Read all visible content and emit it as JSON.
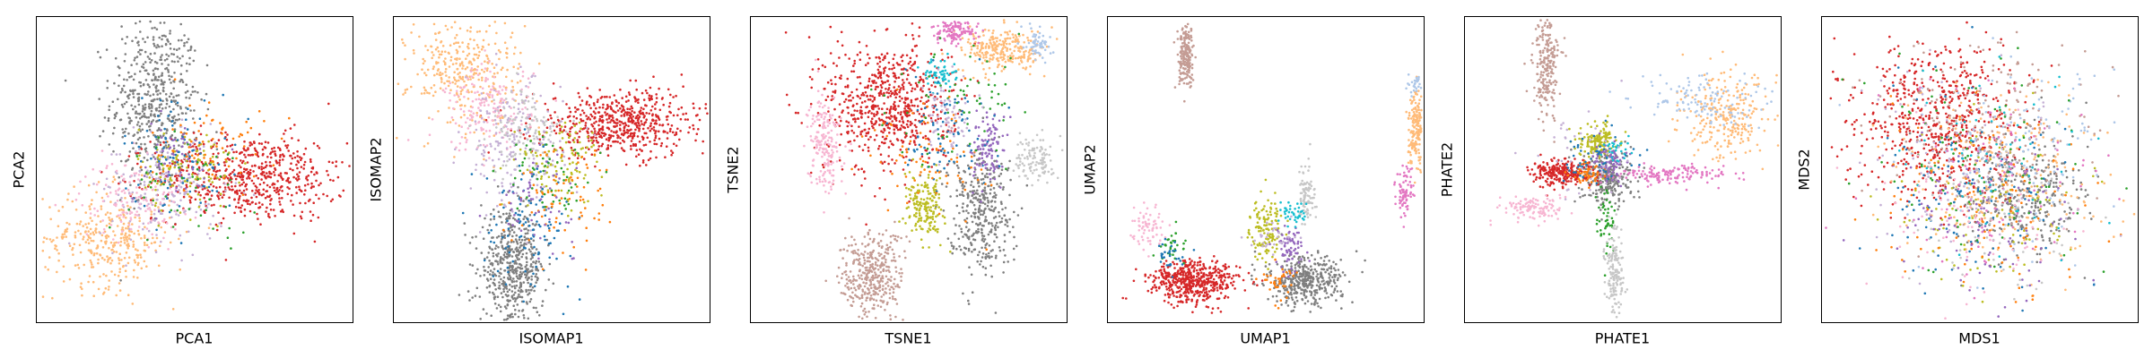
{
  "figure": {
    "panel_count": 6
  },
  "palette": {
    "red": "#d62728",
    "gray": "#7f7f7f",
    "orange": "#ff7f0e",
    "light_orange": "#ffbb78",
    "blue": "#1f77b4",
    "light_blue": "#aec7e8",
    "olive": "#bcbd22",
    "pink": "#e377c2",
    "light_pink": "#f7b6d2",
    "brown": "#c49c94",
    "purple": "#9467bd",
    "lavender": "#c5b0d5",
    "green": "#2ca02c",
    "cyan": "#17becf",
    "silver": "#c7c7c7"
  },
  "chart_data": [
    {
      "type": "scatter",
      "title": "",
      "xlabel": "PCA1",
      "ylabel": "PCA2",
      "xticks": [],
      "yticks": [],
      "grid": false,
      "legend": "none",
      "xlim": [
        -10,
        10
      ],
      "ylim": [
        -10,
        10
      ],
      "clusters": [
        {
          "color": "#7f7f7f",
          "center": [
            -2.5,
            4.5
          ],
          "spread": [
            1.4,
            2.8
          ],
          "count": 520
        },
        {
          "color": "#d62728",
          "center": [
            3.5,
            -0.5
          ],
          "spread": [
            3.0,
            1.4
          ],
          "count": 620
        },
        {
          "color": "#ffbb78",
          "center": [
            -5.5,
            -4.5
          ],
          "spread": [
            2.0,
            1.6
          ],
          "count": 340
        },
        {
          "color": "#c5b0d5",
          "center": [
            -2.0,
            -1.5
          ],
          "spread": [
            2.0,
            1.8
          ],
          "count": 180
        },
        {
          "color": "#f7b6d2",
          "center": [
            -4.0,
            -2.0
          ],
          "spread": [
            1.6,
            1.3
          ],
          "count": 130
        },
        {
          "color": "#bcbd22",
          "center": [
            -0.5,
            0.0
          ],
          "spread": [
            1.5,
            1.4
          ],
          "count": 110
        },
        {
          "color": "#ff7f0e",
          "center": [
            0.8,
            1.5
          ],
          "spread": [
            1.8,
            1.6
          ],
          "count": 80
        },
        {
          "color": "#1f77b4",
          "center": [
            -1.0,
            1.0
          ],
          "spread": [
            1.8,
            2.0
          ],
          "count": 90
        },
        {
          "color": "#9467bd",
          "center": [
            -1.5,
            0.5
          ],
          "spread": [
            1.4,
            1.4
          ],
          "count": 60
        },
        {
          "color": "#2ca02c",
          "center": [
            0.0,
            -1.0
          ],
          "spread": [
            2.0,
            1.6
          ],
          "count": 50
        }
      ]
    },
    {
      "type": "scatter",
      "title": "",
      "xlabel": "ISOMAP1",
      "ylabel": "ISOMAP2",
      "xticks": [],
      "yticks": [],
      "grid": false,
      "legend": "none",
      "xlim": [
        -10,
        10
      ],
      "ylim": [
        -10,
        10
      ],
      "clusters": [
        {
          "color": "#d62728",
          "center": [
            4.5,
            3.0
          ],
          "spread": [
            2.8,
            1.1
          ],
          "count": 600
        },
        {
          "color": "#7f7f7f",
          "center": [
            -2.5,
            -6.5
          ],
          "spread": [
            1.0,
            1.8
          ],
          "count": 520
        },
        {
          "color": "#ffbb78",
          "center": [
            -5.5,
            6.5
          ],
          "spread": [
            1.8,
            1.8
          ],
          "count": 340
        },
        {
          "color": "#f7b6d2",
          "center": [
            -4.0,
            4.0
          ],
          "spread": [
            1.4,
            1.4
          ],
          "count": 180
        },
        {
          "color": "#c5b0d5",
          "center": [
            -2.5,
            1.5
          ],
          "spread": [
            1.6,
            2.2
          ],
          "count": 180
        },
        {
          "color": "#c7c7c7",
          "center": [
            -1.5,
            2.5
          ],
          "spread": [
            1.2,
            1.4
          ],
          "count": 120
        },
        {
          "color": "#bcbd22",
          "center": [
            0.5,
            0.5
          ],
          "spread": [
            1.4,
            1.4
          ],
          "count": 110
        },
        {
          "color": "#1f77b4",
          "center": [
            -1.5,
            -3.5
          ],
          "spread": [
            1.4,
            2.0
          ],
          "count": 110
        },
        {
          "color": "#ff7f0e",
          "center": [
            1.0,
            -1.5
          ],
          "spread": [
            1.8,
            1.8
          ],
          "count": 80
        },
        {
          "color": "#9467bd",
          "center": [
            -1.0,
            -2.0
          ],
          "spread": [
            1.2,
            1.4
          ],
          "count": 60
        },
        {
          "color": "#2ca02c",
          "center": [
            0.0,
            -0.5
          ],
          "spread": [
            1.4,
            1.4
          ],
          "count": 50
        }
      ]
    },
    {
      "type": "scatter",
      "title": "",
      "xlabel": "TSNE1",
      "ylabel": "TSNE2",
      "xticks": [],
      "yticks": [],
      "grid": false,
      "legend": "none",
      "xlim": [
        -10,
        10
      ],
      "ylim": [
        -10,
        10
      ],
      "clusters": [
        {
          "color": "#d62728",
          "center": [
            -1.3,
            4.2
          ],
          "spread": [
            2.0,
            2.2
          ],
          "count": 680
        },
        {
          "color": "#7f7f7f",
          "center": [
            4.5,
            -2.5
          ],
          "spread": [
            1.0,
            2.0
          ],
          "count": 380
        },
        {
          "color": "#c49c94",
          "center": [
            -2.3,
            -7.0
          ],
          "spread": [
            1.0,
            1.5
          ],
          "count": 380
        },
        {
          "color": "#ffbb78",
          "center": [
            6.0,
            7.8
          ],
          "spread": [
            1.3,
            0.7
          ],
          "count": 260
        },
        {
          "color": "#f7b6d2",
          "center": [
            -5.3,
            1.8
          ],
          "spread": [
            0.5,
            1.6
          ],
          "count": 200
        },
        {
          "color": "#bcbd22",
          "center": [
            1.0,
            -2.5
          ],
          "spread": [
            0.6,
            1.0
          ],
          "count": 180
        },
        {
          "color": "#e377c2",
          "center": [
            3.0,
            9.0
          ],
          "spread": [
            0.7,
            0.4
          ],
          "count": 120
        },
        {
          "color": "#9467bd",
          "center": [
            5.0,
            1.3
          ],
          "spread": [
            0.5,
            1.1
          ],
          "count": 110
        },
        {
          "color": "#c7c7c7",
          "center": [
            8.0,
            0.8
          ],
          "spread": [
            0.6,
            0.8
          ],
          "count": 110
        },
        {
          "color": "#aec7e8",
          "center": [
            8.2,
            8.2
          ],
          "spread": [
            0.4,
            0.6
          ],
          "count": 60
        },
        {
          "color": "#17becf",
          "center": [
            2.0,
            6.3
          ],
          "spread": [
            0.5,
            0.4
          ],
          "count": 60
        },
        {
          "color": "#1f77b4",
          "center": [
            2.3,
            2.5
          ],
          "spread": [
            1.6,
            1.8
          ],
          "count": 90
        },
        {
          "color": "#ff7f0e",
          "center": [
            1.5,
            1.0
          ],
          "spread": [
            1.8,
            2.0
          ],
          "count": 80
        },
        {
          "color": "#2ca02c",
          "center": [
            3.5,
            4.5
          ],
          "spread": [
            2.2,
            2.0
          ],
          "count": 70
        },
        {
          "color": "#c5b0d5",
          "center": [
            2.5,
            3.5
          ],
          "spread": [
            1.0,
            1.4
          ],
          "count": 70
        }
      ]
    },
    {
      "type": "scatter",
      "title": "",
      "xlabel": "UMAP1",
      "ylabel": "UMAP2",
      "xticks": [],
      "yticks": [],
      "grid": false,
      "legend": "none",
      "xlim": [
        -10,
        10
      ],
      "ylim": [
        -10,
        10
      ],
      "clusters": [
        {
          "color": "#d62728",
          "center": [
            -4.5,
            -7.3
          ],
          "spread": [
            1.4,
            0.7
          ],
          "count": 520
        },
        {
          "color": "#7f7f7f",
          "center": [
            2.4,
            -7.3
          ],
          "spread": [
            1.2,
            0.8
          ],
          "count": 420
        },
        {
          "color": "#c49c94",
          "center": [
            -5.0,
            7.3
          ],
          "spread": [
            0.25,
            1.0
          ],
          "count": 200
        },
        {
          "color": "#ffbb78",
          "center": [
            9.5,
            2.8
          ],
          "spread": [
            0.25,
            1.2
          ],
          "count": 180
        },
        {
          "color": "#bcbd22",
          "center": [
            0.0,
            -3.8
          ],
          "spread": [
            0.5,
            1.0
          ],
          "count": 130
        },
        {
          "color": "#c7c7c7",
          "center": [
            2.6,
            -1.6
          ],
          "spread": [
            0.25,
            1.0
          ],
          "count": 90
        },
        {
          "color": "#e377c2",
          "center": [
            8.8,
            -1.5
          ],
          "spread": [
            0.3,
            0.8
          ],
          "count": 80
        },
        {
          "color": "#f7b6d2",
          "center": [
            -7.5,
            -3.8
          ],
          "spread": [
            0.5,
            0.8
          ],
          "count": 70
        },
        {
          "color": "#9467bd",
          "center": [
            1.5,
            -5.3
          ],
          "spread": [
            0.5,
            0.7
          ],
          "count": 70
        },
        {
          "color": "#ff7f0e",
          "center": [
            0.8,
            -7.2
          ],
          "spread": [
            0.5,
            0.6
          ],
          "count": 40
        },
        {
          "color": "#17becf",
          "center": [
            1.8,
            -2.8
          ],
          "spread": [
            0.4,
            0.4
          ],
          "count": 40
        },
        {
          "color": "#2ca02c",
          "center": [
            -6.0,
            -5.0
          ],
          "spread": [
            0.5,
            0.6
          ],
          "count": 30
        },
        {
          "color": "#1f77b4",
          "center": [
            -5.8,
            -5.5
          ],
          "spread": [
            0.6,
            0.6
          ],
          "count": 30
        },
        {
          "color": "#aec7e8",
          "center": [
            9.5,
            5.5
          ],
          "spread": [
            0.2,
            0.3
          ],
          "count": 25
        },
        {
          "color": "#c5b0d5",
          "center": [
            0.5,
            -4.5
          ],
          "spread": [
            0.8,
            0.6
          ],
          "count": 30
        }
      ]
    },
    {
      "type": "scatter",
      "title": "",
      "xlabel": "PHATE1",
      "ylabel": "PHATE2",
      "xticks": [],
      "yticks": [],
      "grid": false,
      "legend": "none",
      "xlim": [
        -10,
        10
      ],
      "ylim": [
        -10,
        10
      ],
      "clusters": [
        {
          "color": "#7f7f7f",
          "center": [
            -1.0,
            -0.5
          ],
          "spread": [
            0.8,
            0.9
          ],
          "count": 260
        },
        {
          "color": "#d62728",
          "center": [
            -3.8,
            -0.2
          ],
          "spread": [
            0.9,
            0.4
          ],
          "count": 260
        },
        {
          "color": "#bcbd22",
          "center": [
            -1.5,
            1.8
          ],
          "spread": [
            0.6,
            0.6
          ],
          "count": 150
        },
        {
          "color": "#9467bd",
          "center": [
            -0.8,
            0.6
          ],
          "spread": [
            0.5,
            0.6
          ],
          "count": 80
        },
        {
          "color": "#ff7f0e",
          "center": [
            -2.3,
            -0.3
          ],
          "spread": [
            0.5,
            0.4
          ],
          "count": 50
        },
        {
          "color": "#17becf",
          "center": [
            -0.5,
            1.3
          ],
          "spread": [
            0.4,
            0.4
          ],
          "count": 30
        },
        {
          "color": "#2ca02c",
          "center": [
            -1.0,
            -3.5
          ],
          "spread": [
            0.4,
            1.2
          ],
          "count": 50
        },
        {
          "color": "#e377c2",
          "center": [
            3.2,
            -0.3
          ],
          "spread": [
            1.8,
            0.3
          ],
          "count": 150
        },
        {
          "color": "#ffbb78",
          "center": [
            6.5,
            3.5
          ],
          "spread": [
            1.4,
            1.4
          ],
          "count": 260
        },
        {
          "color": "#aec7e8",
          "center": [
            5.0,
            4.5
          ],
          "spread": [
            2.0,
            0.8
          ],
          "count": 120
        },
        {
          "color": "#c49c94",
          "center": [
            -4.8,
            6.8
          ],
          "spread": [
            0.4,
            1.6
          ],
          "count": 220
        },
        {
          "color": "#c7c7c7",
          "center": [
            -0.5,
            -6.8
          ],
          "spread": [
            0.3,
            1.4
          ],
          "count": 150
        },
        {
          "color": "#f7b6d2",
          "center": [
            -5.8,
            -2.5
          ],
          "spread": [
            1.0,
            0.4
          ],
          "count": 120
        },
        {
          "color": "#1f77b4",
          "center": [
            -1.8,
            0.5
          ],
          "spread": [
            1.2,
            1.0
          ],
          "count": 50
        },
        {
          "color": "#c5b0d5",
          "center": [
            -2.5,
            1.0
          ],
          "spread": [
            1.5,
            1.8
          ],
          "count": 40
        }
      ]
    },
    {
      "type": "scatter",
      "title": "",
      "xlabel": "MDS1",
      "ylabel": "MDS2",
      "xticks": [],
      "yticks": [],
      "grid": false,
      "legend": "none",
      "xlim": [
        -10,
        10
      ],
      "ylim": [
        -10,
        10
      ],
      "clusters": [
        {
          "color": "#d62728",
          "center": [
            -2.5,
            3.2
          ],
          "spread": [
            2.6,
            2.6
          ],
          "count": 650
        },
        {
          "color": "#7f7f7f",
          "center": [
            2.5,
            -1.8
          ],
          "spread": [
            2.0,
            2.0
          ],
          "count": 330
        },
        {
          "color": "#ffbb78",
          "center": [
            1.5,
            -1.0
          ],
          "spread": [
            3.4,
            3.2
          ],
          "count": 240
        },
        {
          "color": "#c49c94",
          "center": [
            1.0,
            2.5
          ],
          "spread": [
            3.4,
            3.2
          ],
          "count": 200
        },
        {
          "color": "#aec7e8",
          "center": [
            2.5,
            1.0
          ],
          "spread": [
            3.2,
            3.2
          ],
          "count": 130
        },
        {
          "color": "#bcbd22",
          "center": [
            0.5,
            -2.5
          ],
          "spread": [
            3.0,
            3.0
          ],
          "count": 110
        },
        {
          "color": "#9467bd",
          "center": [
            0.0,
            -3.0
          ],
          "spread": [
            3.0,
            2.8
          ],
          "count": 100
        },
        {
          "color": "#e377c2",
          "center": [
            1.0,
            -1.0
          ],
          "spread": [
            3.6,
            3.4
          ],
          "count": 100
        },
        {
          "color": "#1f77b4",
          "center": [
            -0.5,
            -1.5
          ],
          "spread": [
            3.4,
            3.2
          ],
          "count": 110
        },
        {
          "color": "#ff7f0e",
          "center": [
            0.0,
            -2.0
          ],
          "spread": [
            3.4,
            3.2
          ],
          "count": 110
        },
        {
          "color": "#2ca02c",
          "center": [
            0.0,
            0.0
          ],
          "spread": [
            3.6,
            3.4
          ],
          "count": 80
        },
        {
          "color": "#17becf",
          "center": [
            1.5,
            0.5
          ],
          "spread": [
            3.0,
            3.0
          ],
          "count": 60
        },
        {
          "color": "#c5b0d5",
          "center": [
            -1.0,
            0.5
          ],
          "spread": [
            3.6,
            3.4
          ],
          "count": 80
        },
        {
          "color": "#f7b6d2",
          "center": [
            -0.5,
            -3.5
          ],
          "spread": [
            3.0,
            2.6
          ],
          "count": 70
        },
        {
          "color": "#c7c7c7",
          "center": [
            1.5,
            -3.0
          ],
          "spread": [
            3.0,
            2.6
          ],
          "count": 60
        }
      ]
    }
  ]
}
